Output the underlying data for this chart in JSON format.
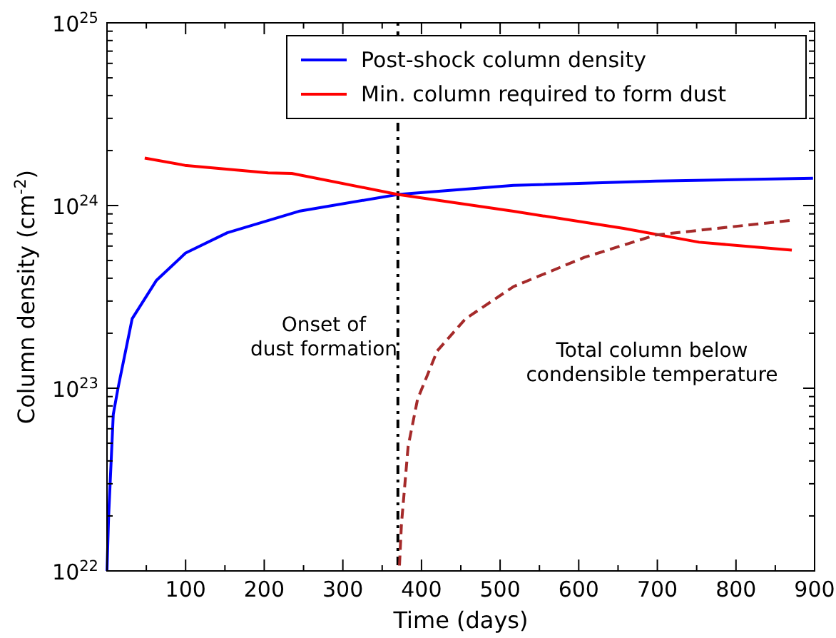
{
  "chart_data": {
    "type": "line",
    "xlabel": "Time (days)",
    "ylabel": "Column density (cm$^{-2}$)",
    "log": "y",
    "xlim": [
      0,
      900
    ],
    "ylim": [
      1e+22,
      1e+25
    ],
    "xticks": [
      {
        "value": 50,
        "label": null
      },
      100,
      {
        "value": 150,
        "label": null
      },
      200,
      {
        "value": 250,
        "label": null
      },
      300,
      {
        "value": 350,
        "label": null
      },
      400,
      {
        "value": 450,
        "label": null
      },
      500,
      {
        "value": 550,
        "label": null
      },
      600,
      {
        "value": 650,
        "label": null
      },
      700,
      {
        "value": 750,
        "label": null
      },
      800,
      {
        "value": 850,
        "label": null
      },
      900
    ],
    "yticks": [
      {
        "value": 1e+22,
        "label": "10$^{22}$"
      },
      {
        "value": 2e+22,
        "label": null
      },
      {
        "value": 3e+22,
        "label": null
      },
      {
        "value": 4e+22,
        "label": null
      },
      {
        "value": 5e+22,
        "label": null
      },
      {
        "value": 6e+22,
        "label": null
      },
      {
        "value": 7e+22,
        "label": null
      },
      {
        "value": 8e+22,
        "label": null
      },
      {
        "value": 9e+22,
        "label": null
      },
      {
        "value": 1e+23,
        "label": "10$^{23}$"
      },
      {
        "value": 2e+23,
        "label": null
      },
      {
        "value": 3e+23,
        "label": null
      },
      {
        "value": 4e+23,
        "label": null
      },
      {
        "value": 5e+23,
        "label": null
      },
      {
        "value": 6e+23,
        "label": null
      },
      {
        "value": 7e+23,
        "label": null
      },
      {
        "value": 8e+23,
        "label": null
      },
      {
        "value": 9e+23,
        "label": null
      },
      {
        "value": 1e+24,
        "label": "10$^{24}$"
      },
      {
        "value": 2e+24,
        "label": null
      },
      {
        "value": 3e+24,
        "label": null
      },
      {
        "value": 4e+24,
        "label": null
      },
      {
        "value": 5e+24,
        "label": null
      },
      {
        "value": 6e+24,
        "label": null
      },
      {
        "value": 7e+24,
        "label": null
      },
      {
        "value": 8e+24,
        "label": null
      },
      {
        "value": 9e+24,
        "label": null
      },
      {
        "value": 1e+25,
        "label": "10$^{25}$"
      }
    ],
    "grid": false,
    "legend": "top right",
    "marker": "none",
    "series": [
      {
        "name": "Post-shock column density",
        "color": "#0000ff",
        "line_style": "solid",
        "x": [
          0,
          2,
          8,
          14,
          32,
          63,
          100,
          153,
          244,
          370,
          517,
          698,
          898
        ],
        "values": [
          1e+22,
          1.95e+22,
          7.2e+22,
          1e+23,
          2.4e+23,
          3.9e+23,
          5.5e+23,
          7.1e+23,
          9.3e+23,
          1.15e+24,
          1.29e+24,
          1.36e+24,
          1.41e+24
        ]
      },
      {
        "name": "Min. column required to form dust",
        "color": "#ff0000",
        "line_style": "solid",
        "x": [
          48,
          99,
          205,
          235,
          370,
          517,
          657,
          753,
          871
        ],
        "values": [
          1.82e+24,
          1.66e+24,
          1.51e+24,
          1.5e+24,
          1.15e+24,
          9.3e+23,
          7.5e+23,
          6.3e+23,
          5.7e+23
        ]
      },
      {
        "color": "#a52a2a",
        "line_style": "dashed",
        "x": [
          372,
          374.5,
          383,
          395,
          420,
          456,
          517,
          607,
          698,
          871
        ],
        "values": [
          1.07e+22,
          1.8e+22,
          4.8e+22,
          8.7e+22,
          1.6e+23,
          2.4e+23,
          3.6e+23,
          5.2e+23,
          6.9e+23,
          8.3e+23
        ]
      }
    ],
    "ref_lines": [
      {
        "axis": "x",
        "value": 370,
        "color": "#000000",
        "line_style": "dotted"
      }
    ],
    "annotations": [
      "Onset of\ndust formation",
      "Total column below\ncondensible temperature"
    ]
  }
}
